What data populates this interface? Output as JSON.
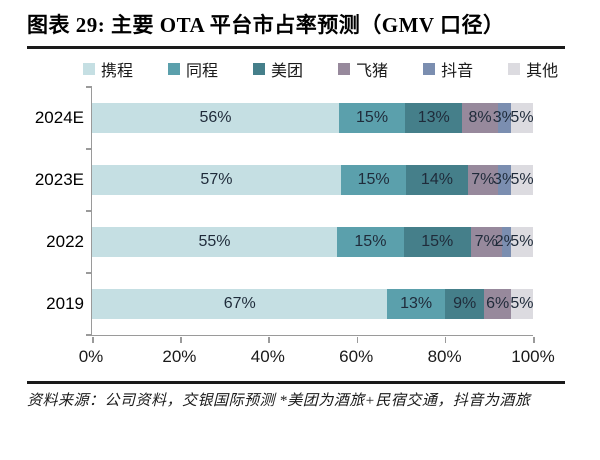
{
  "title": "图表 29: 主要 OTA 平台市占率预测（GMV 口径）",
  "footer": "资料来源：公司资料，交银国际预测  *美团为酒旅+民宿交通，抖音为酒旅",
  "colors": {
    "axis": "#9a9a9a",
    "rule": "#1a1a1a",
    "bar_label": "#1f2b3a"
  },
  "chart_data": {
    "type": "bar",
    "orientation": "horizontal",
    "stacked": true,
    "grid": false,
    "legend_position": "top",
    "title": "主要 OTA 平台市占率预测（GMV 口径）",
    "categories": [
      "2024E",
      "2023E",
      "2022",
      "2019"
    ],
    "series": [
      {
        "name": "携程",
        "color": "#c5dfe3",
        "values": [
          56,
          57,
          55,
          67
        ]
      },
      {
        "name": "同程",
        "color": "#5ba0ac",
        "values": [
          15,
          15,
          15,
          13
        ]
      },
      {
        "name": "美团",
        "color": "#457f8a",
        "values": [
          13,
          14,
          15,
          9
        ]
      },
      {
        "name": "飞猪",
        "color": "#97899c",
        "values": [
          8,
          7,
          7,
          6
        ]
      },
      {
        "name": "抖音",
        "color": "#7b8eb0",
        "values": [
          3,
          3,
          2,
          0
        ]
      },
      {
        "name": "其他",
        "color": "#dcdbe0",
        "values": [
          5,
          5,
          5,
          5
        ]
      }
    ],
    "value_suffix": "%",
    "x_ticks": [
      "0%",
      "20%",
      "40%",
      "60%",
      "80%",
      "100%"
    ],
    "xlim": [
      0,
      100
    ]
  }
}
